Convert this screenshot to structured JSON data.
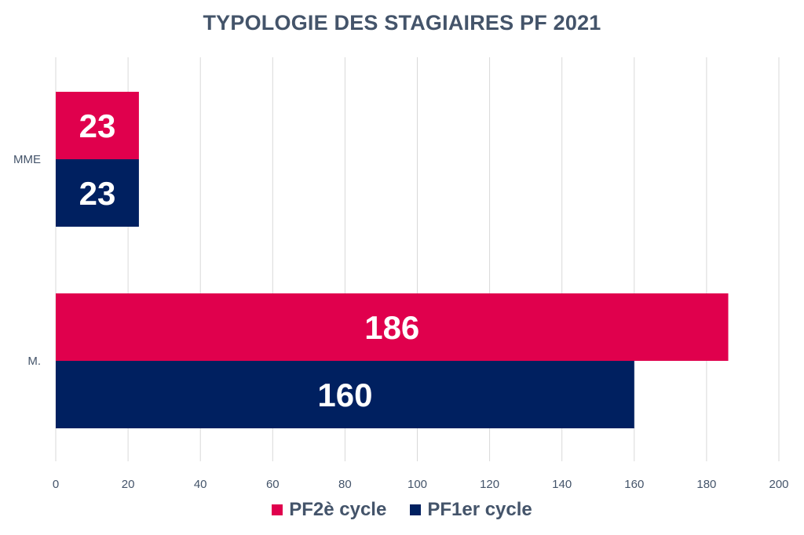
{
  "chart_data": {
    "type": "bar",
    "orientation": "horizontal",
    "title": "TYPOLOGIE DES STAGIAIRES PF 2021",
    "categories": [
      "MME",
      "M."
    ],
    "series": [
      {
        "name": "PF2è cycle",
        "values": [
          23,
          186
        ],
        "color": "#e0004d"
      },
      {
        "name": "PF1er cycle",
        "values": [
          23,
          160
        ],
        "color": "#002060"
      }
    ],
    "xlim": [
      0,
      200
    ],
    "x_ticks": [
      0,
      20,
      40,
      60,
      80,
      100,
      120,
      140,
      160,
      180,
      200
    ],
    "grid": true,
    "legend_position": "bottom"
  }
}
